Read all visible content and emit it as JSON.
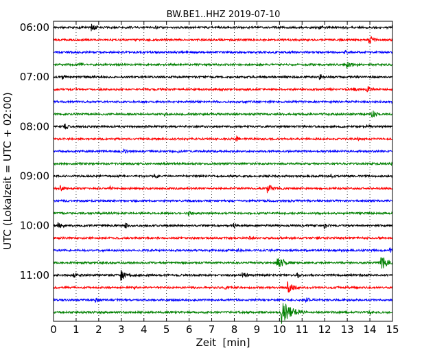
{
  "chart_data": {
    "type": "line",
    "title": "BW.BE1..HHZ 2019-07-10",
    "xlabel": "Zeit  [min]",
    "ylabel": "UTC (Lokalzeit = UTC + 02:00)",
    "xlim": [
      0,
      15
    ],
    "x_ticks": [
      "0",
      "1",
      "2",
      "3",
      "4",
      "5",
      "6",
      "7",
      "8",
      "9",
      "10",
      "11",
      "12",
      "13",
      "14",
      "15"
    ],
    "y_ticks": [
      "06:00",
      "07:00",
      "08:00",
      "09:00",
      "10:00",
      "11:00"
    ],
    "grid": "vertical-dotted",
    "trace_interval_min": 15,
    "series_colors": [
      "#000000",
      "#ff0000",
      "#0000ff",
      "#008000"
    ],
    "traces": [
      {
        "start": "06:00",
        "events": [
          [
            1.7,
            0.8
          ],
          [
            4.5,
            0.4
          ],
          [
            11.8,
            0.5
          ],
          [
            15.0,
            0.6
          ]
        ]
      },
      {
        "start": "06:15",
        "events": [
          [
            12.7,
            0.5
          ],
          [
            14.0,
            1.0
          ]
        ]
      },
      {
        "start": "06:30",
        "events": [
          [
            2.9,
            0.3
          ],
          [
            9.8,
            0.3
          ],
          [
            12.9,
            0.4
          ]
        ]
      },
      {
        "start": "06:45",
        "events": [
          [
            1.2,
            0.5
          ],
          [
            13.0,
            0.8
          ],
          [
            13.5,
            0.5
          ]
        ]
      },
      {
        "start": "07:00",
        "events": [
          [
            0.4,
            0.6
          ],
          [
            11.8,
            0.8
          ]
        ]
      },
      {
        "start": "07:15",
        "events": [
          [
            4.8,
            0.3
          ],
          [
            7.5,
            0.3
          ],
          [
            13.3,
            0.5
          ],
          [
            13.9,
            0.8
          ]
        ]
      },
      {
        "start": "07:30",
        "events": [
          [
            6.7,
            0.4
          ],
          [
            15.0,
            0.5
          ]
        ]
      },
      {
        "start": "07:45",
        "events": [
          [
            4.9,
            0.5
          ],
          [
            14.1,
            0.9
          ]
        ]
      },
      {
        "start": "08:00",
        "events": [
          [
            0.5,
            0.7
          ],
          [
            13.9,
            0.5
          ]
        ]
      },
      {
        "start": "08:15",
        "events": [
          [
            8.1,
            0.7
          ],
          [
            13.5,
            0.4
          ]
        ]
      },
      {
        "start": "08:30",
        "events": [
          [
            3.1,
            0.6
          ],
          [
            5.5,
            0.4
          ]
        ]
      },
      {
        "start": "08:45",
        "events": [
          [
            3.7,
            0.4
          ],
          [
            15.0,
            0.4
          ]
        ]
      },
      {
        "start": "09:00",
        "events": [
          [
            4.5,
            0.6
          ],
          [
            12.3,
            0.4
          ]
        ]
      },
      {
        "start": "09:15",
        "events": [
          [
            0.3,
            0.7
          ],
          [
            2.5,
            0.5
          ],
          [
            9.5,
            1.0
          ]
        ]
      },
      {
        "start": "09:30",
        "events": [
          [
            6.0,
            0.3
          ],
          [
            10.5,
            0.3
          ]
        ]
      },
      {
        "start": "09:45",
        "events": [
          [
            6.0,
            0.7
          ]
        ]
      },
      {
        "start": "10:00",
        "events": [
          [
            0.2,
            0.8
          ],
          [
            3.2,
            0.6
          ],
          [
            8.0,
            0.6
          ],
          [
            12.0,
            0.7
          ]
        ]
      },
      {
        "start": "10:15",
        "events": [
          [
            8.7,
            0.5
          ],
          [
            10.0,
            0.4
          ],
          [
            11.7,
            0.4
          ]
        ]
      },
      {
        "start": "10:30",
        "events": [
          [
            8.2,
            0.4
          ],
          [
            14.9,
            0.5
          ]
        ]
      },
      {
        "start": "10:45",
        "events": [
          [
            9.9,
            1.6
          ],
          [
            14.5,
            1.6
          ]
        ]
      },
      {
        "start": "11:00",
        "events": [
          [
            0.9,
            0.5
          ],
          [
            3.0,
            1.2
          ],
          [
            8.4,
            0.7
          ],
          [
            10.8,
            0.6
          ]
        ]
      },
      {
        "start": "11:15",
        "events": [
          [
            3.6,
            0.4
          ],
          [
            7.6,
            0.5
          ],
          [
            10.4,
            1.2
          ]
        ]
      },
      {
        "start": "11:30",
        "events": [
          [
            1.9,
            0.5
          ],
          [
            11.2,
            0.6
          ]
        ]
      },
      {
        "start": "11:45",
        "events": [
          [
            10.1,
            2.6
          ],
          [
            14.0,
            0.4
          ]
        ]
      }
    ]
  }
}
